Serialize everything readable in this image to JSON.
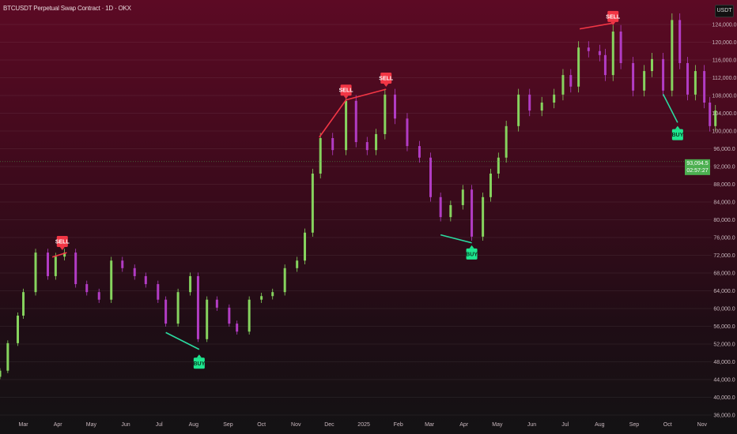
{
  "header": {
    "title": "BTCUSDT Perpetual Swap Contract · 1D · OKX",
    "currency": "USDT"
  },
  "price_label": {
    "value": "93,094.5",
    "countdown": "02:57:27",
    "color": "#4caf50"
  },
  "colors": {
    "bull": "#86d35e",
    "bear": "#b23cc4",
    "sell": "#f23645",
    "buy": "#1ee68f",
    "sell_line": "#f23645",
    "buy_line": "#2bdba0"
  },
  "chart_data": {
    "type": "candlestick",
    "title": "BTCUSDT Perpetual Swap Contract · 1D · OKX",
    "ylim": [
      36000,
      124000
    ],
    "y_ticks": [
      "124,000.0",
      "120,000.0",
      "116,000.0",
      "112,000.0",
      "108,000.0",
      "104,000.0",
      "100,000.0",
      "96,000.0",
      "92,000.0",
      "88,000.0",
      "84,000.0",
      "80,000.0",
      "76,000.0",
      "72,000.0",
      "68,000.0",
      "64,000.0",
      "60,000.0",
      "56,000.0",
      "52,000.0",
      "48,000.0",
      "44,000.0",
      "40,000.0",
      "36,000.0"
    ],
    "y_tick_values": [
      124000,
      120000,
      116000,
      112000,
      108000,
      104000,
      100000,
      96000,
      92000,
      88000,
      84000,
      80000,
      76000,
      72000,
      68000,
      64000,
      60000,
      56000,
      52000,
      48000,
      44000,
      40000,
      36000
    ],
    "x_ticks": [
      {
        "label": "Mar",
        "date": "2024-03-01"
      },
      {
        "label": "Apr",
        "date": "2024-04-01"
      },
      {
        "label": "May",
        "date": "2024-05-01"
      },
      {
        "label": "Jun",
        "date": "2024-06-01"
      },
      {
        "label": "Jul",
        "date": "2024-07-01"
      },
      {
        "label": "Aug",
        "date": "2024-08-01"
      },
      {
        "label": "Sep",
        "date": "2024-09-01"
      },
      {
        "label": "Oct",
        "date": "2024-10-01"
      },
      {
        "label": "Nov",
        "date": "2024-11-01"
      },
      {
        "label": "Dec",
        "date": "2024-12-01"
      },
      {
        "label": "2025",
        "date": "2025-01-01"
      },
      {
        "label": "Feb",
        "date": "2025-02-01"
      },
      {
        "label": "Mar",
        "date": "2025-03-01"
      },
      {
        "label": "Apr",
        "date": "2025-04-01"
      },
      {
        "label": "May",
        "date": "2025-05-01"
      },
      {
        "label": "Jun",
        "date": "2025-06-01"
      },
      {
        "label": "Jul",
        "date": "2025-07-01"
      },
      {
        "label": "Aug",
        "date": "2025-08-01"
      },
      {
        "label": "Sep",
        "date": "2025-09-01"
      },
      {
        "label": "Oct",
        "date": "2025-10-01"
      },
      {
        "label": "Nov",
        "date": "2025-11-01"
      }
    ],
    "closes": [
      [
        "2024-02-09",
        46000
      ],
      [
        "2024-02-16",
        52200
      ],
      [
        "2024-02-25",
        58400
      ],
      [
        "2024-03-01",
        63700
      ],
      [
        "2024-03-12",
        72600
      ],
      [
        "2024-03-23",
        67300
      ],
      [
        "2024-03-30",
        71700
      ],
      [
        "2024-04-07",
        72600
      ],
      [
        "2024-04-17",
        65500
      ],
      [
        "2024-04-27",
        63700
      ],
      [
        "2024-05-08",
        62000
      ],
      [
        "2024-05-19",
        70800
      ],
      [
        "2024-05-29",
        69100
      ],
      [
        "2024-06-09",
        67300
      ],
      [
        "2024-06-19",
        65500
      ],
      [
        "2024-06-30",
        62000
      ],
      [
        "2024-07-07",
        56600
      ],
      [
        "2024-07-18",
        63700
      ],
      [
        "2024-07-29",
        67300
      ],
      [
        "2024-08-05",
        53100
      ],
      [
        "2024-08-13",
        62000
      ],
      [
        "2024-08-22",
        60200
      ],
      [
        "2024-09-02",
        56600
      ],
      [
        "2024-09-09",
        54800
      ],
      [
        "2024-09-20",
        62000
      ],
      [
        "2024-10-01",
        62800
      ],
      [
        "2024-10-11",
        63700
      ],
      [
        "2024-10-22",
        69100
      ],
      [
        "2024-11-02",
        70800
      ],
      [
        "2024-11-09",
        77100
      ],
      [
        "2024-11-16",
        90400
      ],
      [
        "2024-11-23",
        98400
      ],
      [
        "2024-12-04",
        95700
      ],
      [
        "2024-12-16",
        106800
      ],
      [
        "2024-12-25",
        97500
      ],
      [
        "2025-01-04",
        95700
      ],
      [
        "2025-01-12",
        99300
      ],
      [
        "2025-01-20",
        108200
      ],
      [
        "2025-01-29",
        102800
      ],
      [
        "2025-02-09",
        96600
      ],
      [
        "2025-02-20",
        94000
      ],
      [
        "2025-03-02",
        85100
      ],
      [
        "2025-03-11",
        80600
      ],
      [
        "2025-03-20",
        83300
      ],
      [
        "2025-03-31",
        86800
      ],
      [
        "2025-04-08",
        76200
      ],
      [
        "2025-04-18",
        85100
      ],
      [
        "2025-04-25",
        90400
      ],
      [
        "2025-05-02",
        94000
      ],
      [
        "2025-05-09",
        101100
      ],
      [
        "2025-05-20",
        108200
      ],
      [
        "2025-05-30",
        104600
      ],
      [
        "2025-06-10",
        106400
      ],
      [
        "2025-06-21",
        108200
      ],
      [
        "2025-06-29",
        112600
      ],
      [
        "2025-07-06",
        110000
      ],
      [
        "2025-07-13",
        118800
      ],
      [
        "2025-07-22",
        118000
      ],
      [
        "2025-08-01",
        117100
      ],
      [
        "2025-08-06",
        112600
      ],
      [
        "2025-08-13",
        122400
      ],
      [
        "2025-08-20",
        115300
      ],
      [
        "2025-08-31",
        109100
      ],
      [
        "2025-09-10",
        113500
      ],
      [
        "2025-09-17",
        116200
      ],
      [
        "2025-09-27",
        109100
      ],
      [
        "2025-10-05",
        125000
      ],
      [
        "2025-10-12",
        115300
      ],
      [
        "2025-10-19",
        108200
      ],
      [
        "2025-10-26",
        113500
      ],
      [
        "2025-11-03",
        106400
      ],
      [
        "2025-11-08",
        101100
      ],
      [
        "2025-11-13",
        104600
      ]
    ],
    "current_price": 93094.5,
    "signals": [
      {
        "type": "SELL",
        "date": "2024-04-05",
        "price": 72800,
        "line": [
          [
            "2024-03-27",
            71600
          ],
          [
            "2024-04-09",
            72600
          ]
        ]
      },
      {
        "type": "SELL",
        "date": "2024-12-16",
        "price": 106900,
        "line": [
          [
            "2024-11-22",
            98600
          ],
          [
            "2024-12-16",
            107000
          ],
          [
            "2025-01-21",
            109400
          ]
        ]
      },
      {
        "type": "SELL",
        "date": "2025-01-21",
        "price": 109600,
        "line": []
      },
      {
        "type": "SELL",
        "date": "2025-08-13",
        "price": 123500,
        "line": [
          [
            "2025-07-14",
            123000
          ],
          [
            "2025-08-13",
            124300
          ]
        ]
      },
      {
        "type": "BUY",
        "date": "2024-08-06",
        "price": 50000,
        "line": [
          [
            "2024-07-07",
            54600
          ],
          [
            "2024-08-06",
            50800
          ]
        ]
      },
      {
        "type": "BUY",
        "date": "2025-04-08",
        "price": 74600,
        "line": [
          [
            "2025-03-11",
            76600
          ],
          [
            "2025-04-08",
            74800
          ]
        ]
      },
      {
        "type": "BUY",
        "date": "2025-10-10",
        "price": 101500,
        "line": [
          [
            "2025-09-27",
            108300
          ],
          [
            "2025-10-10",
            101900
          ]
        ]
      }
    ]
  }
}
